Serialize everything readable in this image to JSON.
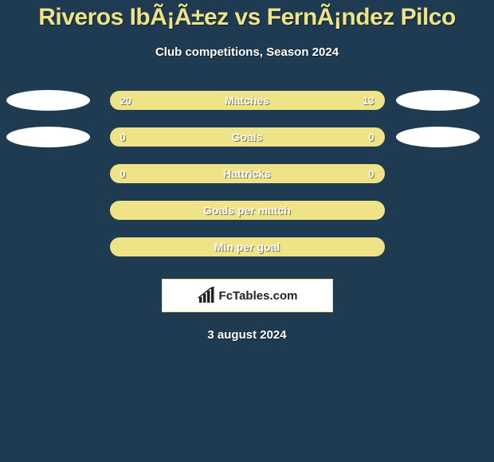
{
  "colors": {
    "background": "#1f3b52",
    "title": "#efe388",
    "subtitle": "#ffffff",
    "ellipse": "#ffffff",
    "bar_fill": "#efe388",
    "bar_border": "#efe388",
    "bar_text": "#ffffff",
    "logo_bg": "#ffffff",
    "logo_border": "#efe388",
    "logo_text": "#222222",
    "date_text": "#ffffff"
  },
  "title": "Riveros IbÃ¡Ã±ez vs FernÃ¡ndez Pilco",
  "subtitle": "Club competitions, Season 2024",
  "rows": [
    {
      "label": "Matches",
      "left": "20",
      "right": "13",
      "show_ellipses": true
    },
    {
      "label": "Goals",
      "left": "0",
      "right": "0",
      "show_ellipses": true
    },
    {
      "label": "Hattricks",
      "left": "0",
      "right": "0",
      "show_ellipses": false
    },
    {
      "label": "Goals per match",
      "left": "",
      "right": "",
      "show_ellipses": false
    },
    {
      "label": "Min per goal",
      "left": "",
      "right": "",
      "show_ellipses": false
    }
  ],
  "logo_text": "FcTables.com",
  "date": "3 august 2024"
}
